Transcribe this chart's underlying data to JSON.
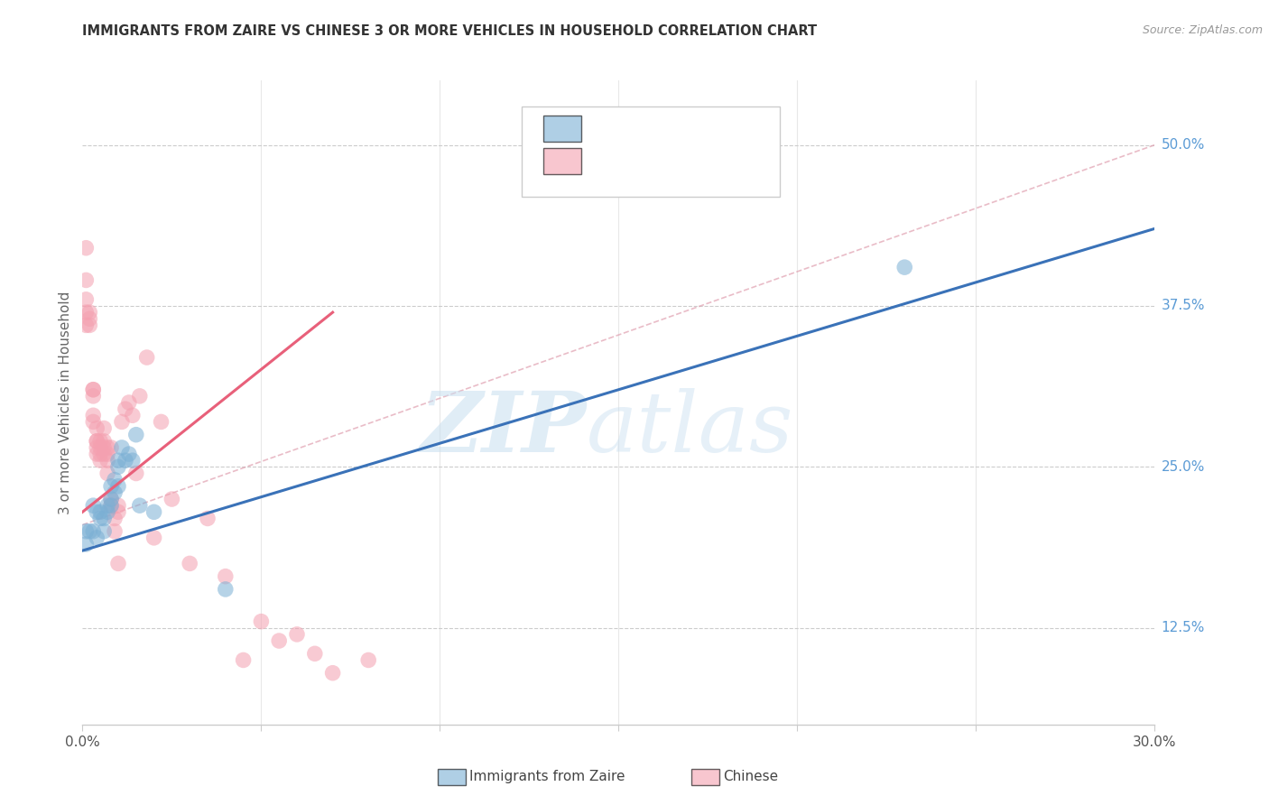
{
  "title": "IMMIGRANTS FROM ZAIRE VS CHINESE 3 OR MORE VEHICLES IN HOUSEHOLD CORRELATION CHART",
  "source": "Source: ZipAtlas.com",
  "ylabel": "3 or more Vehicles in Household",
  "xlim": [
    0.0,
    0.3
  ],
  "ylim": [
    0.05,
    0.55
  ],
  "yticks": [
    0.125,
    0.25,
    0.375,
    0.5
  ],
  "ytick_labels": [
    "12.5%",
    "25.0%",
    "37.5%",
    "50.0%"
  ],
  "zaire_color": "#7BAFD4",
  "chinese_color": "#F4A0B0",
  "trend_zaire_color": "#3A72B8",
  "trend_chinese_color": "#E8607A",
  "watermark_zip": "#C5DCF0",
  "watermark_atlas": "#C5DCF0",
  "background_color": "#ffffff",
  "tick_color": "#5B9BD5",
  "zaire_scatter_x": [
    0.001,
    0.001,
    0.002,
    0.003,
    0.003,
    0.004,
    0.004,
    0.005,
    0.005,
    0.006,
    0.006,
    0.007,
    0.007,
    0.008,
    0.008,
    0.008,
    0.009,
    0.009,
    0.01,
    0.01,
    0.01,
    0.011,
    0.012,
    0.013,
    0.014,
    0.015,
    0.016,
    0.02,
    0.04,
    0.23
  ],
  "zaire_scatter_y": [
    0.19,
    0.2,
    0.2,
    0.22,
    0.2,
    0.215,
    0.195,
    0.21,
    0.215,
    0.2,
    0.21,
    0.22,
    0.215,
    0.235,
    0.225,
    0.22,
    0.24,
    0.23,
    0.255,
    0.25,
    0.235,
    0.265,
    0.255,
    0.26,
    0.255,
    0.275,
    0.22,
    0.215,
    0.155,
    0.405
  ],
  "chinese_scatter_x": [
    0.001,
    0.001,
    0.001,
    0.001,
    0.001,
    0.002,
    0.002,
    0.002,
    0.003,
    0.003,
    0.003,
    0.003,
    0.003,
    0.004,
    0.004,
    0.004,
    0.004,
    0.004,
    0.005,
    0.005,
    0.005,
    0.005,
    0.006,
    0.006,
    0.006,
    0.006,
    0.007,
    0.007,
    0.007,
    0.007,
    0.008,
    0.008,
    0.008,
    0.009,
    0.009,
    0.01,
    0.01,
    0.01,
    0.011,
    0.012,
    0.013,
    0.014,
    0.015,
    0.016,
    0.018,
    0.02,
    0.022,
    0.025,
    0.03,
    0.035,
    0.04,
    0.045,
    0.05,
    0.055,
    0.06,
    0.065,
    0.07,
    0.08
  ],
  "chinese_scatter_y": [
    0.395,
    0.38,
    0.37,
    0.36,
    0.42,
    0.36,
    0.365,
    0.37,
    0.31,
    0.29,
    0.305,
    0.285,
    0.31,
    0.265,
    0.27,
    0.26,
    0.28,
    0.27,
    0.265,
    0.27,
    0.255,
    0.26,
    0.28,
    0.265,
    0.26,
    0.27,
    0.255,
    0.245,
    0.265,
    0.26,
    0.265,
    0.22,
    0.225,
    0.21,
    0.2,
    0.22,
    0.215,
    0.175,
    0.285,
    0.295,
    0.3,
    0.29,
    0.245,
    0.305,
    0.335,
    0.195,
    0.285,
    0.225,
    0.175,
    0.21,
    0.165,
    0.1,
    0.13,
    0.115,
    0.12,
    0.105,
    0.09,
    0.1
  ],
  "zaire_line_x": [
    0.0,
    0.3
  ],
  "zaire_line_y": [
    0.185,
    0.435
  ],
  "chinese_line_x": [
    0.0,
    0.07
  ],
  "chinese_line_y": [
    0.215,
    0.37
  ],
  "dash_line_x": [
    0.0,
    0.3
  ],
  "dash_line_y": [
    0.205,
    0.5
  ]
}
